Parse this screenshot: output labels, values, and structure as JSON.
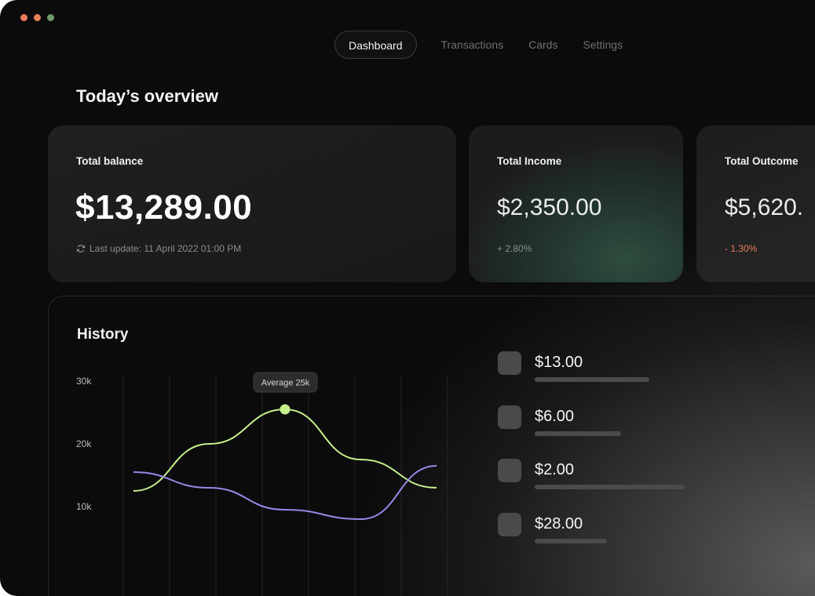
{
  "nav": {
    "tabs": [
      {
        "label": "Dashboard",
        "active": true
      },
      {
        "label": "Transactions",
        "active": false
      },
      {
        "label": "Cards",
        "active": false
      },
      {
        "label": "Settings",
        "active": false
      }
    ]
  },
  "page_title": "Today’s overview",
  "cards": {
    "balance": {
      "label": "Total balance",
      "value": "$13,289.00",
      "last_update": "Last update: 11 April 2022 01:00 PM"
    },
    "income": {
      "label": "Total Income",
      "value": "$2,350.00",
      "change": "+ 2.80%"
    },
    "outcome": {
      "label": "Total Outcome",
      "value": "$5,620.",
      "change": "- 1.30%"
    }
  },
  "history": {
    "title": "History",
    "tooltip": "Average 25k",
    "transactions": [
      {
        "amount": "$13.00"
      },
      {
        "amount": "$6.00"
      },
      {
        "amount": "$2.00"
      },
      {
        "amount": "$28.00"
      }
    ]
  },
  "chart_data": {
    "type": "line",
    "y_ticks": [
      "30k",
      "20k",
      "10k"
    ],
    "ylim": [
      0,
      30000
    ],
    "series": [
      {
        "color": "#c6f08a",
        "values": [
          12500,
          20000,
          25500,
          17500,
          13000
        ]
      },
      {
        "color": "#9b86e6",
        "values": [
          15500,
          13000,
          9500,
          8000,
          16500
        ]
      }
    ],
    "highlight": {
      "series": 0,
      "index": 2,
      "label": "Average 25k"
    },
    "grid": true
  },
  "colors": {
    "accent_green": "#c6f08a",
    "accent_purple": "#9b86e6",
    "negative": "#e8795d"
  }
}
